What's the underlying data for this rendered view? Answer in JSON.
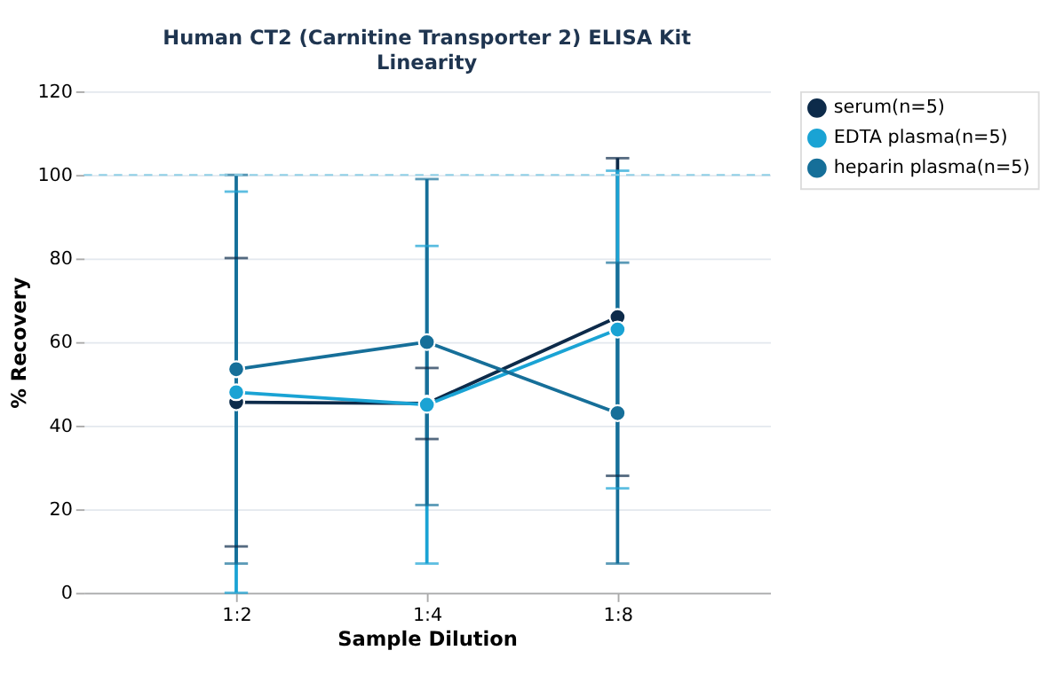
{
  "chart_data": {
    "type": "line",
    "title": "Human CT2 (Carnitine Transporter 2) ELISA Kit",
    "subtitle": "Linearity",
    "xlabel": "Sample Dilution",
    "ylabel": "% Recovery",
    "categories": [
      "1:2",
      "1:4",
      "1:8"
    ],
    "series": [
      {
        "name": "serum(n=5)",
        "color": "#0d2b4a",
        "values": [
          45.6,
          45.3,
          66
        ],
        "errors": [
          34.5,
          8.5,
          38
        ]
      },
      {
        "name": "EDTA plasma(n=5)",
        "color": "#1aa3d4",
        "values": [
          48,
          45,
          63
        ],
        "errors": [
          48,
          38,
          38
        ]
      },
      {
        "name": "heparin plasma(n=5)",
        "color": "#166f99",
        "values": [
          53.5,
          60,
          43
        ],
        "errors": [
          46.5,
          39,
          36
        ]
      }
    ],
    "ylim": [
      0,
      120
    ],
    "yticks": [
      0,
      20,
      40,
      60,
      80,
      100,
      120
    ],
    "ref_lines": [
      {
        "axis": "y",
        "value": 100,
        "color": "#8fcfe6",
        "line_style": "dashed"
      }
    ],
    "grid": "y",
    "legend": "top right",
    "marker": "circle",
    "line_style": "solid"
  }
}
